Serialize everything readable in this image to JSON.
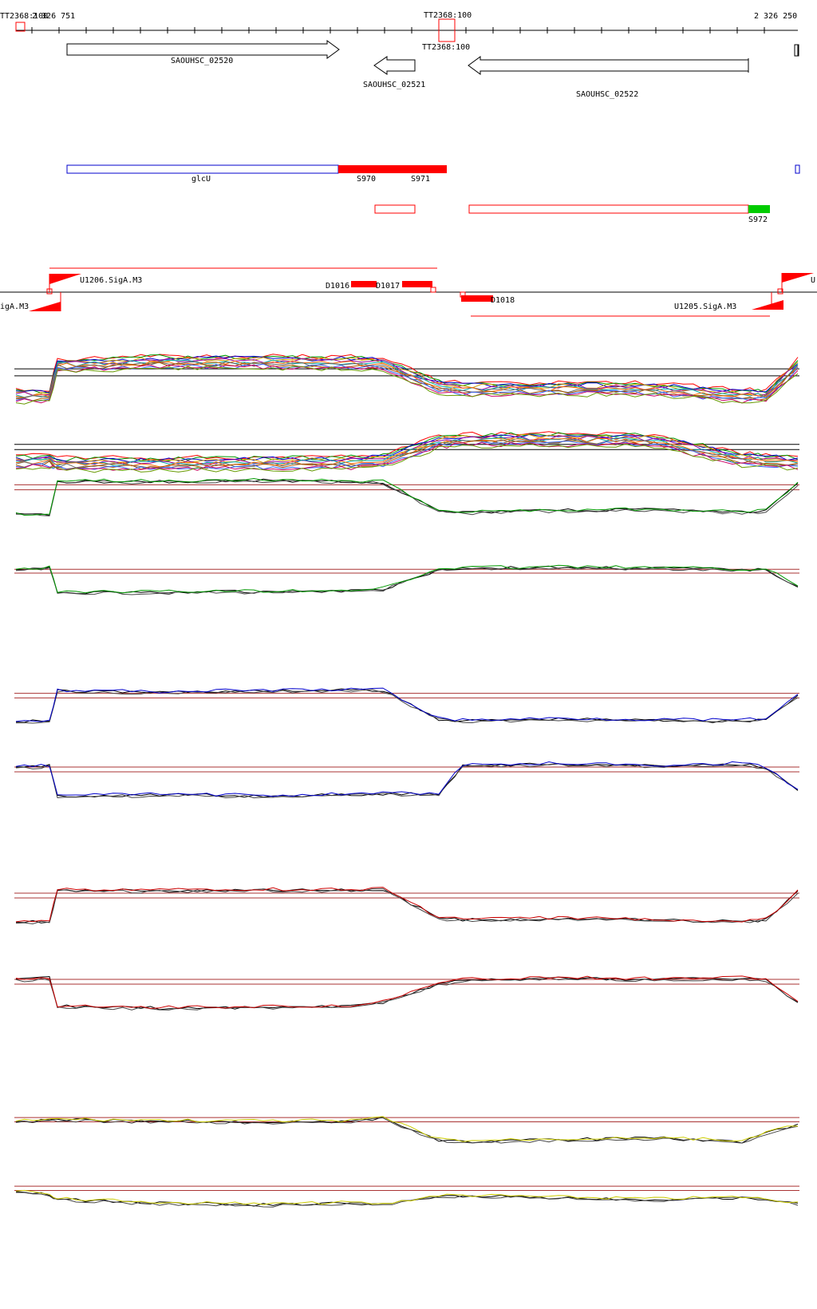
{
  "coords": {
    "left": "2 326 751",
    "right": "2 326 250"
  },
  "tts": [
    {
      "label": "TT2368:100"
    },
    {
      "label": "TT2368:100"
    }
  ],
  "tt_overlap_left": "TT2368:100",
  "tt_overlap_top": "TT2368:100",
  "genes": {
    "g1": "SAOUHSC_02520",
    "g2": "SAOUHSC_02521",
    "g3": "SAOUHSC_02522"
  },
  "segments": {
    "glcU": "glcU",
    "s970": "S970",
    "s971": "S971",
    "s972": "S972"
  },
  "promoters": {
    "u1206": "U1206.SigA.M3",
    "left_rev": "igA.M3",
    "u1205": "U1205.SigA.M3",
    "right_edge": "U"
  },
  "downstream": {
    "d1016": "D1016",
    "d1017": "D1017",
    "d1018": "D1018"
  },
  "colors": {
    "strand_box": "#ff0000",
    "expr_blue": "#0000cc",
    "expr_red": "#cc0000",
    "expr_green": "#009900",
    "expr_yellow": "#cccc00",
    "s972_green": "#00cc00"
  },
  "expression": {
    "panels": [
      {
        "id": "multi-fwd",
        "shape": [
          0.15,
          0.15,
          0.85,
          0.92,
          0.92,
          0.9,
          0.88,
          0.35,
          0.3,
          0.32,
          0.3,
          0.15,
          0.15,
          0.85
        ]
      },
      {
        "id": "multi-rev",
        "shape": [
          0.2,
          0.25,
          0.15,
          0.15,
          0.18,
          0.2,
          0.25,
          0.85,
          0.9,
          0.92,
          0.88,
          0.3,
          0.25,
          0.2
        ]
      },
      {
        "id": "green-fwd",
        "shape": [
          0.1,
          0.1,
          0.9,
          0.9,
          0.92,
          0.9,
          0.88,
          0.2,
          0.15,
          0.2,
          0.22,
          0.15,
          0.2,
          0.85
        ]
      },
      {
        "id": "green-rev",
        "shape": [
          0.8,
          0.85,
          0.1,
          0.1,
          0.12,
          0.15,
          0.2,
          0.8,
          0.85,
          0.88,
          0.85,
          0.8,
          0.8,
          0.3
        ]
      },
      {
        "id": "blue-fwd",
        "shape": [
          0.1,
          0.1,
          0.88,
          0.85,
          0.88,
          0.9,
          0.9,
          0.15,
          0.1,
          0.15,
          0.12,
          0.1,
          0.15,
          0.75
        ]
      },
      {
        "id": "blue-rev",
        "shape": [
          0.8,
          0.85,
          0.1,
          0.12,
          0.1,
          0.12,
          0.15,
          0.15,
          0.85,
          0.9,
          0.85,
          0.9,
          0.8,
          0.25
        ]
      },
      {
        "id": "red-fwd",
        "shape": [
          0.1,
          0.1,
          0.9,
          0.88,
          0.9,
          0.9,
          0.92,
          0.2,
          0.15,
          0.18,
          0.15,
          0.1,
          0.15,
          0.85
        ]
      },
      {
        "id": "red-rev",
        "shape": [
          0.8,
          0.85,
          0.15,
          0.1,
          0.12,
          0.15,
          0.25,
          0.7,
          0.8,
          0.85,
          0.82,
          0.85,
          0.8,
          0.25
        ]
      },
      {
        "id": "yellow-fwd",
        "shape": [
          0.7,
          0.75,
          0.75,
          0.72,
          0.7,
          0.72,
          0.8,
          0.2,
          0.15,
          0.2,
          0.25,
          0.15,
          0.4,
          0.6
        ]
      },
      {
        "id": "yellow-rev",
        "shape": [
          0.7,
          0.6,
          0.45,
          0.35,
          0.3,
          0.35,
          0.3,
          0.55,
          0.55,
          0.5,
          0.45,
          0.5,
          0.45,
          0.35
        ]
      }
    ]
  }
}
